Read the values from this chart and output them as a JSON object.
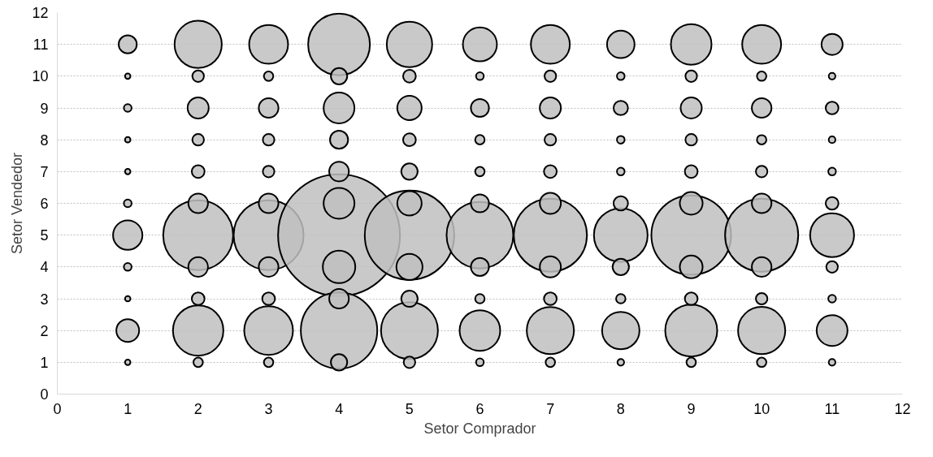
{
  "chart_data": {
    "type": "bubble",
    "xlabel": "Setor Comprador",
    "ylabel": "Setor Vendedor",
    "xlim": [
      0,
      12
    ],
    "ylim": [
      0,
      12
    ],
    "xticks": [
      0,
      1,
      2,
      3,
      4,
      5,
      6,
      7,
      8,
      9,
      10,
      11,
      12
    ],
    "yticks": [
      0,
      1,
      2,
      3,
      4,
      5,
      6,
      7,
      8,
      9,
      10,
      11,
      12
    ],
    "grid": "y",
    "marker": "circle",
    "series": [
      {
        "color": "#bfbfbf",
        "x": [
          1,
          1,
          1,
          1,
          1,
          1,
          1,
          1,
          1,
          1,
          1
        ],
        "values": [
          1,
          2,
          3,
          4,
          5,
          6,
          7,
          8,
          9,
          10,
          11
        ],
        "sizes": [
          0.002,
          0.035,
          0.002,
          0.004,
          0.058,
          0.004,
          0.002,
          0.002,
          0.004,
          0.002,
          0.022
        ]
      },
      {
        "color": "#bfbfbf",
        "x": [
          2,
          2,
          2,
          2,
          2,
          2,
          2,
          2,
          2,
          2,
          2
        ],
        "values": [
          1,
          2,
          3,
          4,
          5,
          6,
          7,
          8,
          9,
          10,
          11
        ],
        "sizes": [
          0.006,
          0.171,
          0.011,
          0.026,
          0.329,
          0.026,
          0.011,
          0.009,
          0.03,
          0.009,
          0.15
        ]
      },
      {
        "color": "#bfbfbf",
        "x": [
          3,
          3,
          3,
          3,
          3,
          3,
          3,
          3,
          3,
          3,
          3
        ],
        "values": [
          1,
          2,
          3,
          4,
          5,
          6,
          7,
          8,
          9,
          10,
          11
        ],
        "sizes": [
          0.006,
          0.16,
          0.011,
          0.026,
          0.329,
          0.026,
          0.009,
          0.009,
          0.026,
          0.006,
          0.102
        ]
      },
      {
        "color": "#bfbfbf",
        "x": [
          4,
          4,
          4,
          4,
          4,
          4,
          4,
          4,
          4,
          4,
          4
        ],
        "values": [
          1,
          2,
          3,
          4,
          5,
          6,
          7,
          8,
          9,
          10,
          11
        ],
        "sizes": [
          0.018,
          0.393,
          0.026,
          0.071,
          1,
          0.064,
          0.026,
          0.022,
          0.064,
          0.018,
          0.257
        ]
      },
      {
        "color": "#bfbfbf",
        "x": [
          5,
          5,
          5,
          5,
          5,
          5,
          5,
          5,
          5,
          5,
          5
        ],
        "values": [
          1,
          2,
          3,
          4,
          5,
          6,
          7,
          8,
          9,
          10,
          11
        ],
        "sizes": [
          0.009,
          0.218,
          0.018,
          0.046,
          0.538,
          0.04,
          0.018,
          0.011,
          0.04,
          0.011,
          0.139
        ]
      },
      {
        "color": "#bfbfbf",
        "x": [
          6,
          6,
          6,
          6,
          6,
          6,
          6,
          6,
          6,
          6,
          6
        ],
        "values": [
          1,
          2,
          3,
          4,
          5,
          6,
          7,
          8,
          9,
          10,
          11
        ],
        "sizes": [
          0.004,
          0.111,
          0.006,
          0.022,
          0.299,
          0.022,
          0.006,
          0.006,
          0.022,
          0.004,
          0.078
        ]
      },
      {
        "color": "#bfbfbf",
        "x": [
          7,
          7,
          7,
          7,
          7,
          7,
          7,
          7,
          7,
          7,
          7
        ],
        "values": [
          1,
          2,
          3,
          4,
          5,
          6,
          7,
          8,
          9,
          10,
          11
        ],
        "sizes": [
          0.006,
          0.15,
          0.011,
          0.03,
          0.36,
          0.03,
          0.011,
          0.009,
          0.03,
          0.009,
          0.102
        ]
      },
      {
        "color": "#bfbfbf",
        "x": [
          8,
          8,
          8,
          8,
          8,
          8,
          8,
          8,
          8,
          8,
          8
        ],
        "values": [
          1,
          2,
          3,
          4,
          5,
          6,
          7,
          8,
          9,
          10,
          11
        ],
        "sizes": [
          0.003,
          0.094,
          0.006,
          0.018,
          0.194,
          0.014,
          0.004,
          0.004,
          0.014,
          0.004,
          0.051
        ]
      },
      {
        "color": "#bfbfbf",
        "x": [
          9,
          9,
          9,
          9,
          9,
          9,
          9,
          9,
          9,
          9,
          9
        ],
        "values": [
          1,
          2,
          3,
          4,
          5,
          6,
          7,
          8,
          9,
          10,
          11
        ],
        "sizes": [
          0.006,
          0.182,
          0.011,
          0.035,
          0.427,
          0.035,
          0.011,
          0.009,
          0.03,
          0.009,
          0.111
        ]
      },
      {
        "color": "#bfbfbf",
        "x": [
          10,
          10,
          10,
          10,
          10,
          10,
          10,
          10,
          10,
          10,
          10
        ],
        "values": [
          1,
          2,
          3,
          4,
          5,
          6,
          7,
          8,
          9,
          10,
          11
        ],
        "sizes": [
          0.006,
          0.15,
          0.009,
          0.026,
          0.36,
          0.026,
          0.009,
          0.006,
          0.026,
          0.006,
          0.102
        ]
      },
      {
        "color": "#bfbfbf",
        "x": [
          11,
          11,
          11,
          11,
          11,
          11,
          11,
          11,
          11,
          11,
          11
        ],
        "values": [
          1,
          2,
          3,
          4,
          5,
          6,
          7,
          8,
          9,
          10,
          11
        ],
        "sizes": [
          0.003,
          0.064,
          0.004,
          0.009,
          0.13,
          0.011,
          0.004,
          0.003,
          0.011,
          0.003,
          0.03
        ]
      }
    ]
  }
}
